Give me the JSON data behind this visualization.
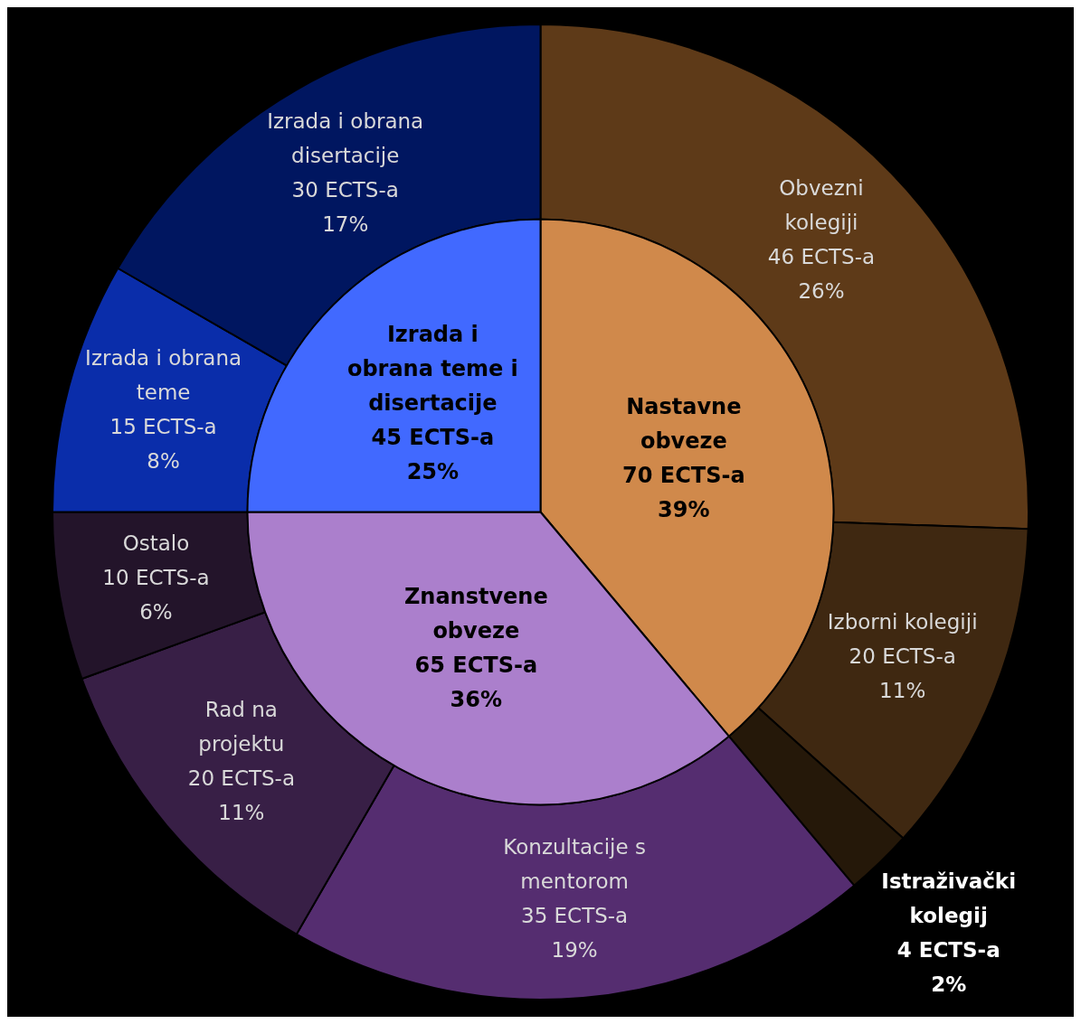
{
  "chart_data": [
    {
      "type": "pie",
      "categories": [
        "Nastavne obveze",
        "Znanstvene obveze",
        "Izrada i obrana teme i disertacije"
      ],
      "values": [
        70,
        65,
        45
      ],
      "colors": [
        "#d0894b",
        "#ab7fcc",
        "#4169ff"
      ],
      "value_labels": [
        "70 ECTS-a\n39%",
        "65 ECTS-a\n36%",
        "45 ECTS-a\n25%"
      ]
    },
    {
      "type": "donut",
      "categories": [
        "Obvezni kolegiji",
        "Izborni kolegiji",
        "Istraživački kolegij",
        "Konzultacije s mentorom",
        "Rad na projektu",
        "Ostalo",
        "Izrada i obrana teme",
        "Izrada i obrana disertacije"
      ],
      "values": [
        46,
        20,
        4,
        35,
        20,
        10,
        15,
        30
      ],
      "colors": [
        "#5e3a18",
        "#3f2811",
        "#251809",
        "#552d70",
        "#381f46",
        "#23142a",
        "#0a2daa",
        "#001660"
      ],
      "value_labels": [
        "46 ECTS-a\n26%",
        "20 ECTS-a\n11%",
        "4 ECTS-a\n2%",
        "35 ECTS-a\n19%",
        "20 ECTS-a\n11%",
        "10 ECTS-a\n6%",
        "15 ECTS-a\n8%",
        "30 ECTS-a\n17%"
      ]
    }
  ]
}
